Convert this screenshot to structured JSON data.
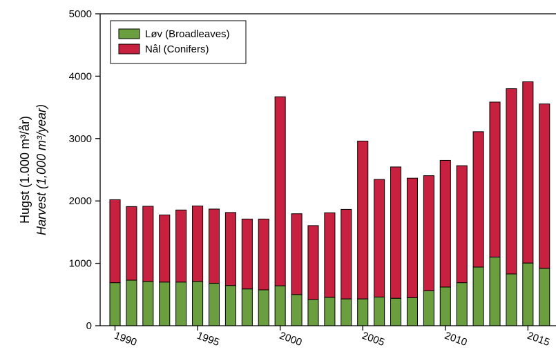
{
  "chart_data": {
    "type": "stacked-bar",
    "y_label": [
      "Hugst (1.000 m³/år)",
      "Harvest (1,000 m³/year)"
    ],
    "x": [
      1990,
      1991,
      1992,
      1993,
      1994,
      1995,
      1996,
      1997,
      1998,
      1999,
      2000,
      2001,
      2002,
      2003,
      2004,
      2005,
      2006,
      2007,
      2008,
      2009,
      2010,
      2011,
      2012,
      2013,
      2014,
      2015,
      2016
    ],
    "series": [
      {
        "name": "Løv (Broadleaves)",
        "color": "#6a9e3f",
        "values": [
          690,
          730,
          710,
          700,
          700,
          710,
          680,
          645,
          590,
          575,
          640,
          500,
          420,
          455,
          430,
          430,
          460,
          440,
          450,
          560,
          620,
          690,
          940,
          1100,
          830,
          1005,
          920
        ]
      },
      {
        "name": "Nål (Conifers)",
        "color": "#c8203f",
        "values": [
          1330,
          1180,
          1205,
          1075,
          1155,
          1210,
          1190,
          1170,
          1120,
          1135,
          3030,
          1295,
          1185,
          1355,
          1435,
          2530,
          1885,
          2105,
          1915,
          1845,
          2030,
          1875,
          2170,
          2485,
          2970,
          2905,
          2635
        ]
      }
    ],
    "xlim": [
      1989.1,
      2016.7
    ],
    "xticks": [
      1990,
      1995,
      2000,
      2005,
      2010,
      2015
    ],
    "ylim": [
      0,
      5000
    ],
    "yticks": [
      0,
      1000,
      2000,
      3000,
      4000,
      5000
    ],
    "legend": "upper left"
  }
}
